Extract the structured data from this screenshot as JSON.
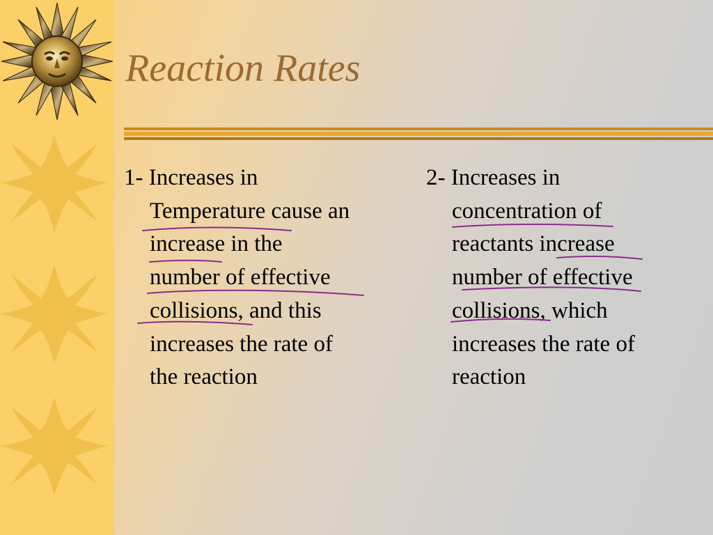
{
  "slide": {
    "title": "Reaction Rates",
    "left_point": {
      "lines": [
        "1- Increases in",
        "Temperature cause an",
        "increase in the",
        "number of effective",
        "collisions, and this",
        "increases the rate of",
        "the reaction"
      ]
    },
    "right_point": {
      "lines": [
        "2- Increases in",
        "concentration of",
        "reactants increase",
        "number of effective",
        "collisions, which",
        "increases the rate of",
        "reaction"
      ]
    }
  },
  "decorations": {
    "strip_icon": "sun-icon",
    "face_icon": "sun-face-icon",
    "annotation_color": "#8a2c8a",
    "title_color": "#9c6a30",
    "strip_color": "#fcd068"
  }
}
